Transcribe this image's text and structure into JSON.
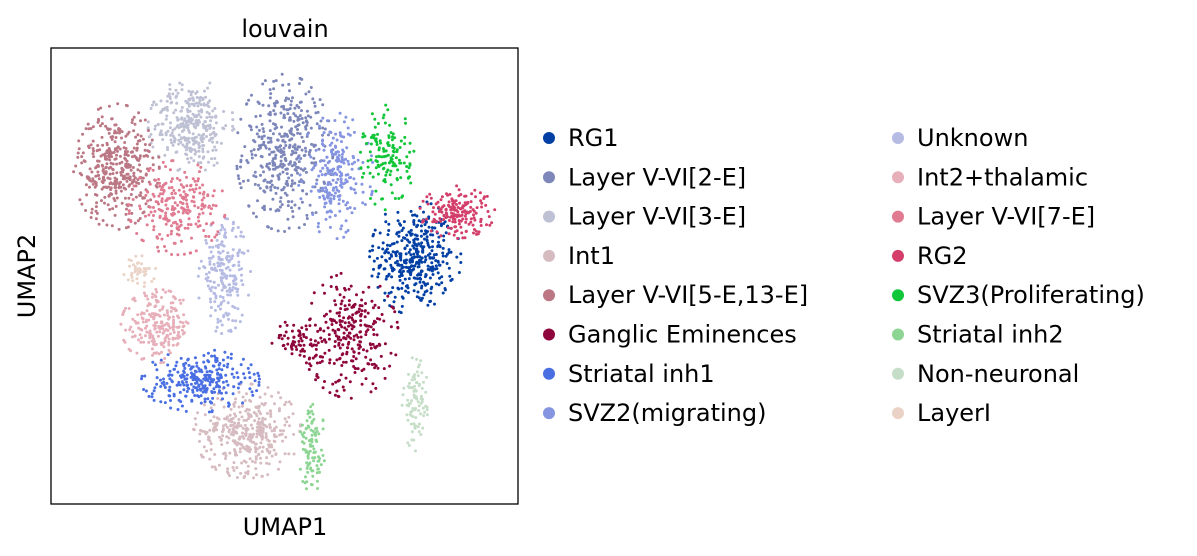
{
  "chart_data": {
    "type": "scatter",
    "title": "louvain",
    "xlabel": "UMAP1",
    "ylabel": "UMAP2",
    "xticks": false,
    "yticks": false,
    "grid": false,
    "xlim": [
      0,
      100
    ],
    "ylim": [
      0,
      100
    ],
    "legend_position": "right",
    "legend_columns": 2,
    "series": [
      {
        "name": "RG1",
        "color": "#023fa5",
        "clusters": [
          {
            "cx": 78,
            "cy": 54,
            "rx": 8.5,
            "ry": 11,
            "n": 380
          }
        ]
      },
      {
        "name": "Layer V-VI[2-E]",
        "color": "#7d87b9",
        "clusters": [
          {
            "cx": 50,
            "cy": 77,
            "rx": 9,
            "ry": 15,
            "n": 420
          }
        ]
      },
      {
        "name": "Layer V-VI[3-E]",
        "color": "#bec1d4",
        "clusters": [
          {
            "cx": 30,
            "cy": 83,
            "rx": 8,
            "ry": 9,
            "n": 320
          }
        ]
      },
      {
        "name": "Int1",
        "color": "#d6bcc0",
        "clusters": [
          {
            "cx": 42,
            "cy": 16,
            "rx": 10,
            "ry": 9,
            "n": 380
          }
        ]
      },
      {
        "name": "Layer V-VI[5-E,13-E]",
        "color": "#bb7784",
        "clusters": [
          {
            "cx": 14,
            "cy": 74,
            "rx": 8,
            "ry": 12,
            "n": 380
          }
        ]
      },
      {
        "name": "Ganglic Eminences",
        "color": "#8e063b",
        "clusters": [
          {
            "cx": 64,
            "cy": 37,
            "rx": 9,
            "ry": 12,
            "n": 280
          },
          {
            "cx": 53,
            "cy": 36,
            "rx": 5,
            "ry": 4,
            "n": 60
          }
        ]
      },
      {
        "name": "Striatal inh1",
        "color": "#4a6fe3",
        "clusters": [
          {
            "cx": 32,
            "cy": 27,
            "rx": 11,
            "ry": 6,
            "n": 280
          }
        ]
      },
      {
        "name": "SVZ2(migrating)",
        "color": "#8595e1",
        "clusters": [
          {
            "cx": 61,
            "cy": 72,
            "rx": 7,
            "ry": 12,
            "n": 220
          }
        ]
      },
      {
        "name": "Unknown",
        "color": "#b5bbe3",
        "clusters": [
          {
            "cx": 37,
            "cy": 50,
            "rx": 5,
            "ry": 11,
            "n": 200
          }
        ]
      },
      {
        "name": "Int2+thalamic",
        "color": "#e6afb9",
        "clusters": [
          {
            "cx": 23,
            "cy": 39,
            "rx": 7,
            "ry": 7,
            "n": 220
          }
        ]
      },
      {
        "name": "Layer V-VI[7-E]",
        "color": "#e07b91",
        "clusters": [
          {
            "cx": 27,
            "cy": 65,
            "rx": 9,
            "ry": 9,
            "n": 240
          }
        ]
      },
      {
        "name": "RG2",
        "color": "#d33f6a",
        "clusters": [
          {
            "cx": 87,
            "cy": 64,
            "rx": 7,
            "ry": 5,
            "n": 180
          }
        ]
      },
      {
        "name": "SVZ3(Proliferating)",
        "color": "#11c638",
        "clusters": [
          {
            "cx": 72,
            "cy": 76,
            "rx": 5,
            "ry": 10,
            "n": 140
          }
        ]
      },
      {
        "name": "Striatal inh2",
        "color": "#8dd593",
        "clusters": [
          {
            "cx": 56,
            "cy": 12,
            "rx": 2.5,
            "ry": 9,
            "n": 100
          }
        ]
      },
      {
        "name": "Non-neuronal",
        "color": "#c6dec7",
        "clusters": [
          {
            "cx": 78,
            "cy": 22,
            "rx": 2.5,
            "ry": 9,
            "n": 90
          }
        ]
      },
      {
        "name": "LayerI",
        "color": "#ead3c6",
        "clusters": [
          {
            "cx": 19,
            "cy": 51,
            "rx": 3,
            "ry": 3,
            "n": 40
          }
        ]
      }
    ]
  }
}
